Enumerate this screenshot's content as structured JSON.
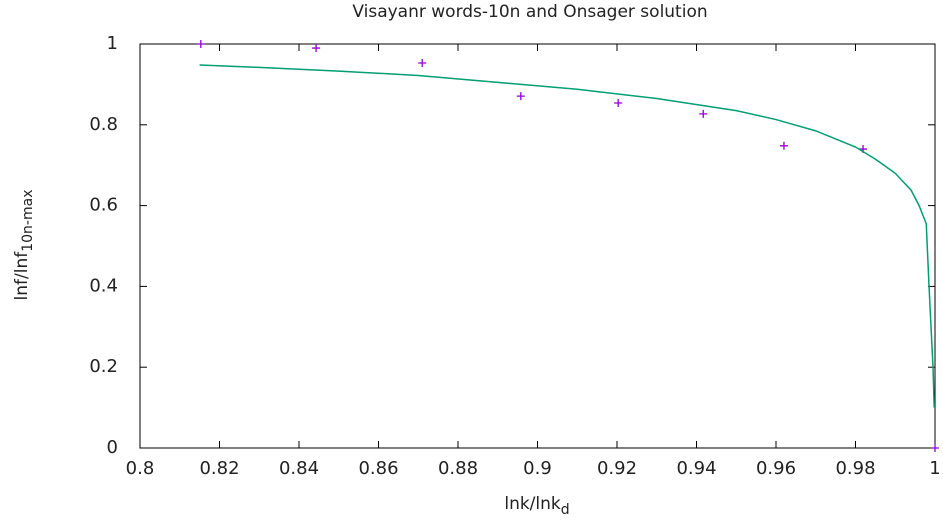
{
  "chart_data": {
    "type": "line",
    "title": "Visayanr words-10n and Onsager solution",
    "xlabel": {
      "text": "lnk/lnk",
      "subscript": "d"
    },
    "ylabel": {
      "text": "lnf/lnf",
      "subscript": "10n-max"
    },
    "xlim": [
      0.8,
      1
    ],
    "ylim": [
      0,
      1
    ],
    "xticks": [
      0.8,
      0.82,
      0.84,
      0.86,
      0.88,
      0.9,
      0.92,
      0.94,
      0.96,
      0.98,
      1
    ],
    "yticks": [
      0,
      0.2,
      0.4,
      0.6,
      0.8,
      1
    ],
    "grid": false,
    "series": [
      {
        "style": "points",
        "color": "#9400d3",
        "x": [
          0.8153,
          0.8443,
          0.871,
          0.8958,
          0.9203,
          0.9417,
          0.962,
          0.9819,
          1.0
        ],
        "values": [
          1.0,
          0.99,
          0.953,
          0.871,
          0.854,
          0.827,
          0.748,
          0.74,
          0
        ]
      },
      {
        "style": "lines",
        "color": "#009e73",
        "x": [
          0.815,
          0.83,
          0.85,
          0.87,
          0.89,
          0.91,
          0.93,
          0.95,
          0.96,
          0.97,
          0.98,
          0.985,
          0.99,
          0.994,
          0.996,
          0.9978,
          0.9985,
          0.999,
          0.9995,
          0.9998
        ],
        "values": [
          0.948,
          0.942,
          0.933,
          0.922,
          0.905,
          0.888,
          0.865,
          0.835,
          0.813,
          0.785,
          0.745,
          0.715,
          0.68,
          0.638,
          0.6,
          0.555,
          0.4,
          0.3,
          0.2,
          0.1
        ]
      }
    ]
  }
}
